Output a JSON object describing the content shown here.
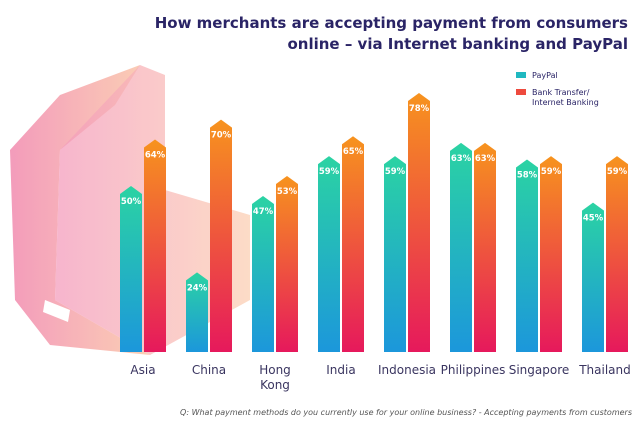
{
  "chart_data": {
    "type": "bar",
    "title": "How merchants are accepting payment from consumers online – via Internet banking and PayPal",
    "note": "Q: What payment methods do you currently use for your online business? - Accepting payments from customers",
    "categories": [
      "Asia",
      "China",
      "Hong Kong",
      "India",
      "Indonesia",
      "Philippines",
      "Singapore",
      "Thailand"
    ],
    "series": [
      {
        "name": "PayPal",
        "color": "#20b8c0",
        "values": [
          50,
          24,
          47,
          59,
          59,
          63,
          58,
          45
        ],
        "value_labels": [
          "50%",
          "24%",
          "47%",
          "59%",
          "59%",
          "63%",
          "58%",
          "45%"
        ]
      },
      {
        "name": "Bank Transfer/ Internet Banking",
        "color": "#ee4a3e",
        "values": [
          64,
          70,
          53,
          65,
          78,
          63,
          59,
          59
        ],
        "value_labels": [
          "64%",
          "70%",
          "53%",
          "65%",
          "78%",
          "63%",
          "59%",
          "59%"
        ]
      }
    ],
    "legend": "top-right"
  }
}
